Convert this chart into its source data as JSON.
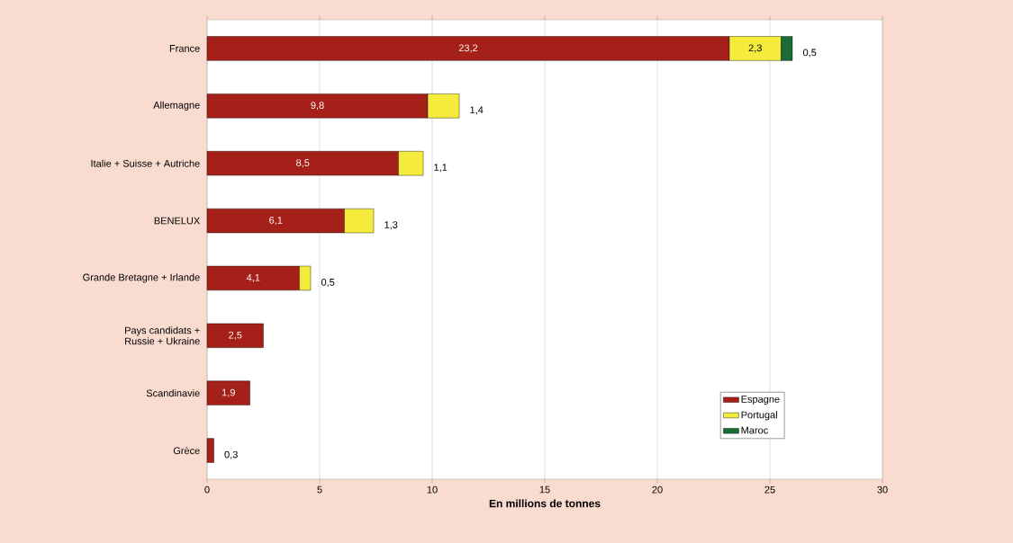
{
  "chart_data": {
    "type": "bar",
    "orientation": "horizontal",
    "stacked": true,
    "categories": [
      "France",
      "Allemagne",
      "Italie + Suisse + Autriche",
      "BENELUX",
      "Grande Bretagne + Irlande",
      "Pays candidats + Russie + Ukraine",
      "Scandinavie",
      "Grèce"
    ],
    "series": [
      {
        "name": "Espagne",
        "color": "#a52019",
        "values": [
          23.2,
          9.8,
          8.5,
          6.1,
          4.1,
          2.5,
          1.9,
          0.3
        ],
        "value_labels": [
          "23,2",
          "9,8",
          "8,5",
          "6,1",
          "4,1",
          "2,5",
          "1,9",
          "0,3"
        ]
      },
      {
        "name": "Portugal",
        "color": "#f5eb3c",
        "values": [
          2.3,
          1.4,
          1.1,
          1.3,
          0.5,
          null,
          null,
          null
        ],
        "value_labels": [
          "2,3",
          "1,4",
          "1,1",
          "1,3",
          "0,5",
          null,
          null,
          null
        ]
      },
      {
        "name": "Maroc",
        "color": "#1a6b35",
        "values": [
          0.5,
          null,
          null,
          null,
          null,
          null,
          null,
          null
        ],
        "value_labels": [
          "0,5",
          null,
          null,
          null,
          null,
          null,
          null,
          null
        ]
      }
    ],
    "xlabel": "En millions de tonnes",
    "xlim": [
      0,
      30
    ],
    "xticks": [
      0,
      5,
      10,
      15,
      20,
      25,
      30
    ],
    "grid": "x",
    "legend": "bottom right"
  }
}
